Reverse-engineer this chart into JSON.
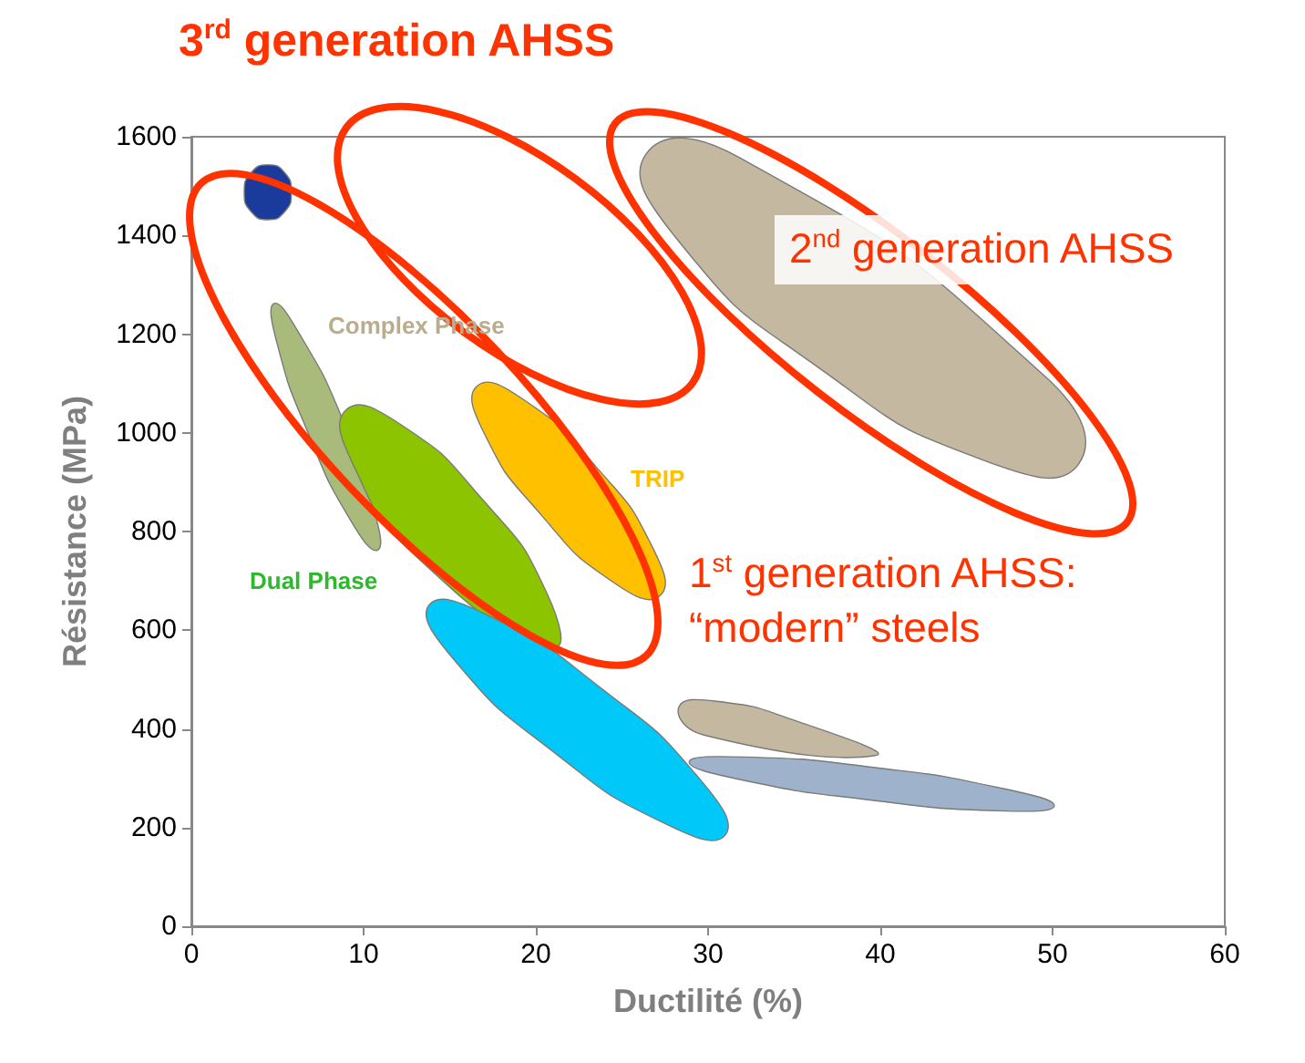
{
  "chart_data": {
    "type": "area",
    "title": "3$^{rd}$ generation AHSS",
    "xlabel": "Ductilité (%)",
    "ylabel": "Résistance (MPa)",
    "xlim": [
      0,
      60
    ],
    "xticks": [
      0,
      10,
      20,
      30,
      40,
      50,
      60
    ],
    "ylim": [
      0,
      1600
    ],
    "yticks": [
      0,
      200,
      400,
      600,
      800,
      1000,
      1200,
      1400,
      1600
    ],
    "grid": false,
    "series": [
      {
        "color": "#1a3a9c",
        "x": [
          5.8,
          5.42,
          4.44,
          3.47,
          3.07,
          3.47,
          4.44,
          5.42
        ],
        "values": [
          1487,
          1448,
          1432,
          1448,
          1487,
          1527,
          1543,
          1527
        ]
      },
      {
        "color": "#c4b9a0",
        "x": [
          51.5,
          46.1,
          36.5,
          28.3,
          26.4,
          31.8,
          null,
          49.6
        ],
        "values": [
          936,
          943,
          1130,
          1388,
          1565,
          1558,
          null,
          1113
        ]
      },
      {
        "color": "#a9bb7a",
        "x": [
          10.8,
          9.2,
          6.8,
          5.0,
          4.8,
          6.3,
          8.8,
          10.6
        ],
        "values": [
          762,
          825,
          998,
          1178,
          1262,
          1199,
          1026,
          845
        ]
      },
      {
        "color": "#8cc400",
        "x": [
          20.9,
          null,
          13.1,
          9.4,
          9.0,
          12.1,
          16.9,
          20.6
        ],
        "values": [
          566,
          null,
          748,
          935,
          1047,
          1018,
          865,
          678
        ]
      },
      {
        "color": "#ffc000",
        "x": [
          27.2,
          24.5,
          20.3,
          17.0,
          16.6,
          19.3,
          23.5,
          26.8
        ],
        "values": [
          670,
          697,
          834,
          999,
          1095,
          1067,
          931,
          766
        ]
      },
      {
        "color": "#00c8f8",
        "x": [
          31.0,
          27.5,
          21.0,
          15.3,
          13.8,
          17.3,
          23.8,
          29.5
        ],
        "values": [
          185,
          208,
          354,
          538,
          651,
          629,
          482,
          299
        ]
      },
      {
        "color": "#c4b9a0",
        "x": [
          null,
          null,
          null,
          29.8,
          28.3,
          30.5,
          35.2,
          39.7
        ],
        "values": [
          null,
          null,
          null,
          387,
          444,
          456,
          415,
          346
        ]
      },
      {
        "color": "#9fb2cc",
        "x": [
          50.1,
          46.9,
          39.4,
          31.9,
          28.9,
          32.1,
          39.6,
          47.0
        ],
        "values": [
          244,
          234,
          256,
          297,
          333,
          343,
          322,
          280
        ]
      }
    ],
    "annotations": [
      "2$^{nd}$ generation AHSS",
      "1$^{st}$ generation AHSS:\n“modern” steels",
      "Complex Phase",
      "TRIP",
      "Dual Phase"
    ]
  }
}
